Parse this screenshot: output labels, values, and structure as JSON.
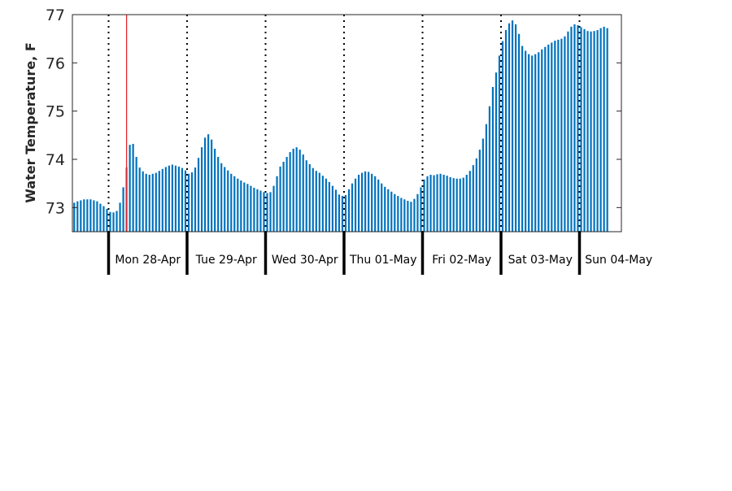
{
  "chart_data": {
    "type": "bar",
    "title": "",
    "xlabel": "",
    "ylabel": "Water Temperature, F",
    "ylim": [
      72.5,
      77
    ],
    "yticks": [
      "73",
      "74",
      "75",
      "76",
      "77"
    ],
    "bar_color": "#0072bd",
    "marker_color": "#e8282b",
    "x_start": "Mon 28-Apr 00:00 minus 11h",
    "days": [
      {
        "label": "Mon 28-Apr"
      },
      {
        "label": "Tue 29-Apr"
      },
      {
        "label": "Wed 30-Apr"
      },
      {
        "label": "Thu 01-May"
      },
      {
        "label": "Fri 02-May"
      },
      {
        "label": "Sat 03-May"
      },
      {
        "label": "Sun 04-May"
      }
    ],
    "hours_per_bar": 1,
    "marker_hour": 16,
    "values": [
      73.1,
      73.13,
      73.15,
      73.17,
      73.17,
      73.17,
      73.15,
      73.13,
      73.08,
      73.03,
      72.97,
      72.91,
      72.9,
      72.93,
      73.1,
      73.42,
      73.83,
      74.3,
      74.32,
      74.05,
      73.83,
      73.75,
      73.7,
      73.68,
      73.7,
      73.72,
      73.76,
      73.8,
      73.84,
      73.87,
      73.89,
      73.87,
      73.85,
      73.82,
      73.77,
      73.7,
      73.73,
      73.83,
      74.03,
      74.25,
      74.45,
      74.52,
      74.41,
      74.22,
      74.05,
      73.92,
      73.84,
      73.77,
      73.7,
      73.65,
      73.6,
      73.56,
      73.52,
      73.49,
      73.45,
      73.41,
      73.38,
      73.35,
      73.32,
      73.3,
      73.32,
      73.45,
      73.65,
      73.85,
      73.95,
      74.05,
      74.15,
      74.22,
      74.25,
      74.2,
      74.1,
      73.98,
      73.9,
      73.82,
      73.76,
      73.72,
      73.66,
      73.6,
      73.53,
      73.45,
      73.37,
      73.27,
      73.24,
      73.26,
      73.38,
      73.5,
      73.6,
      73.68,
      73.72,
      73.75,
      73.74,
      73.7,
      73.65,
      73.58,
      73.5,
      73.43,
      73.38,
      73.33,
      73.28,
      73.24,
      73.2,
      73.17,
      73.14,
      73.12,
      73.18,
      73.28,
      73.42,
      73.58,
      73.65,
      73.68,
      73.67,
      73.69,
      73.7,
      73.68,
      73.66,
      73.63,
      73.61,
      73.6,
      73.6,
      73.62,
      73.68,
      73.76,
      73.88,
      74.02,
      74.2,
      74.43,
      74.73,
      75.1,
      75.5,
      75.8,
      76.15,
      76.45,
      76.68,
      76.82,
      76.88,
      76.8,
      76.6,
      76.35,
      76.25,
      76.18,
      76.15,
      76.18,
      76.22,
      76.28,
      76.33,
      76.38,
      76.42,
      76.46,
      76.48,
      76.5,
      76.55,
      76.65,
      76.75,
      76.8,
      76.78,
      76.74,
      76.7,
      76.66,
      76.65,
      76.66,
      76.68,
      76.72,
      76.75,
      76.72
    ]
  }
}
